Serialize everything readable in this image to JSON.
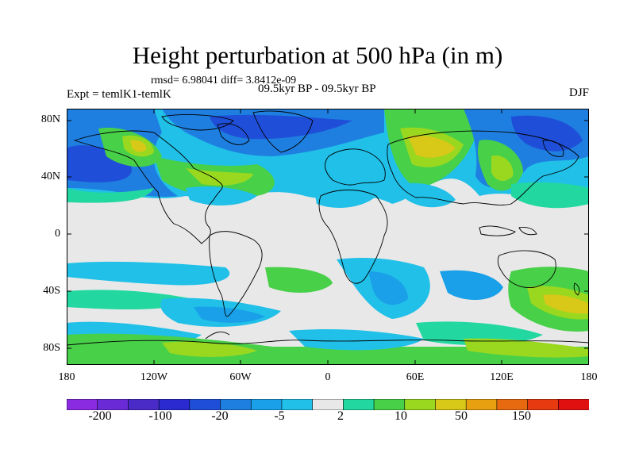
{
  "title": "Height perturbation at 500 hPa (in m)",
  "stats": "rmsd= 6.98041 diff= 3.8412e-09",
  "expt": "Expt = temlK1-temlK",
  "period": "09.5kyr BP - 09.5kyr BP",
  "season": "DJF",
  "map": {
    "lat_ticks": [
      "80N",
      "40N",
      "0",
      "40S",
      "80S"
    ],
    "lon_ticks": [
      "180",
      "120W",
      "60W",
      "0",
      "60E",
      "120E",
      "180"
    ]
  },
  "colorbar": {
    "colors": [
      "#8a2be2",
      "#6a2bd6",
      "#4b2bc8",
      "#2a2ad0",
      "#1f4fd8",
      "#1f7fe0",
      "#1aa0e8",
      "#20c0e8",
      "#e8e8e8",
      "#22d8a0",
      "#48d048",
      "#9ad820",
      "#d8c818",
      "#e8a010",
      "#e86a10",
      "#e83a10",
      "#e01010"
    ],
    "labels": [
      "-200",
      "-100",
      "-20",
      "-5",
      "2",
      "10",
      "50",
      "150"
    ]
  },
  "palette": {
    "neg_strong": "#1f4fd8",
    "neg_mid": "#1f7fe0",
    "neg_weak": "#1aa0e8",
    "neg_light": "#20c0e8",
    "neutral": "#e8e8e8",
    "pos_light": "#22d8a0",
    "pos_mid": "#48d048",
    "pos_weak": "#9ad820",
    "pos_strong": "#d8c818"
  }
}
